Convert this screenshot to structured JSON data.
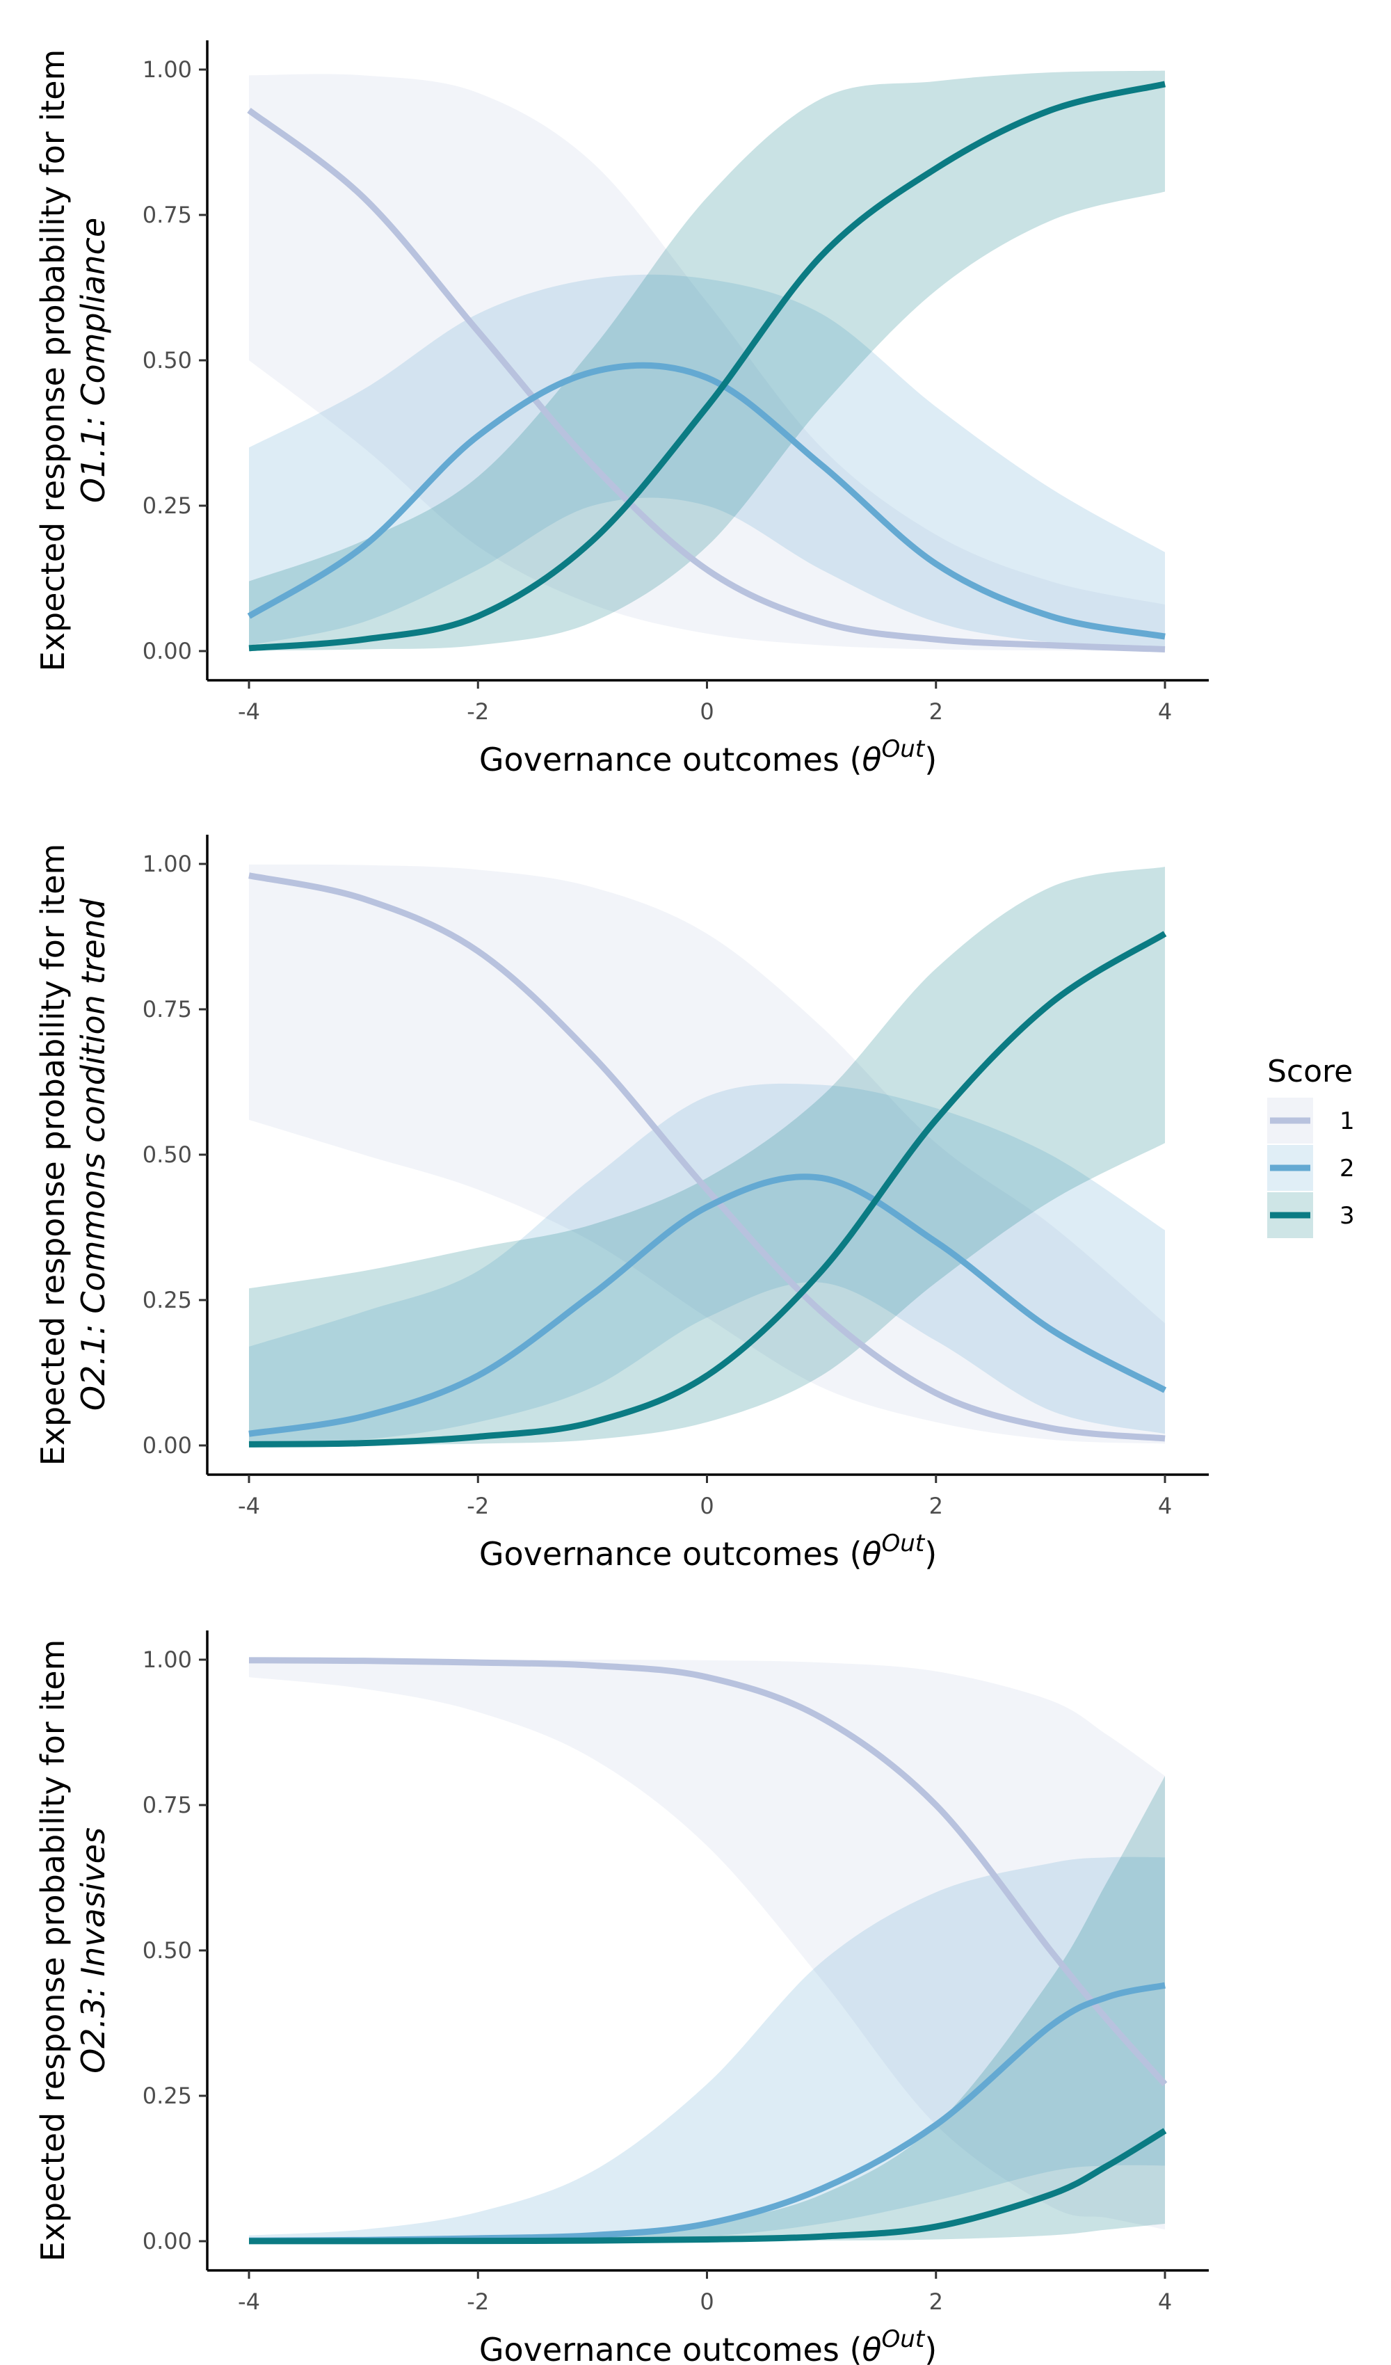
{
  "colors": {
    "score_1": "#b8c2de",
    "score_2": "#64a9d2",
    "score_3": "#0b7b83"
  },
  "legend": {
    "title": "Score",
    "items": [
      {
        "label": "1",
        "color": "#b8c2de"
      },
      {
        "label": "2",
        "color": "#64a9d2"
      },
      {
        "label": "3",
        "color": "#0b7b83"
      }
    ]
  },
  "chart_data": [
    {
      "type": "line",
      "ylabel_line1": "Expected response probability for item",
      "ylabel_item": "O1.1: Compliance",
      "xlabel_main": "Governance outcomes (",
      "xlabel_symbol": "θ",
      "xlabel_sup": "Out",
      "xlabel_close": ")",
      "xlim": [
        -4,
        4
      ],
      "ylim": [
        0,
        1
      ],
      "x_ticks": [
        -4,
        -2,
        0,
        2,
        4
      ],
      "x_tick_labels": [
        "-4",
        "-2",
        "0",
        "2",
        "4"
      ],
      "y_ticks": [
        0,
        0.25,
        0.5,
        0.75,
        1
      ],
      "y_tick_labels": [
        "0.00",
        "0.25",
        "0.50",
        "0.75",
        "1.00"
      ],
      "x": [
        -4,
        -3,
        -2,
        -1,
        0,
        1,
        2,
        3,
        4
      ],
      "series": [
        {
          "name": "1",
          "values": [
            0.93,
            0.78,
            0.55,
            0.32,
            0.14,
            0.05,
            0.02,
            0.01,
            0.003
          ],
          "lower": [
            0.5,
            0.35,
            0.18,
            0.08,
            0.03,
            0.01,
            0.003,
            0.001,
            0.0005
          ],
          "upper": [
            0.99,
            0.99,
            0.96,
            0.84,
            0.6,
            0.35,
            0.2,
            0.12,
            0.08
          ]
        },
        {
          "name": "2",
          "values": [
            0.06,
            0.18,
            0.37,
            0.48,
            0.47,
            0.32,
            0.15,
            0.06,
            0.025
          ],
          "lower": [
            0.01,
            0.05,
            0.14,
            0.25,
            0.25,
            0.14,
            0.05,
            0.015,
            0.005
          ],
          "upper": [
            0.35,
            0.45,
            0.58,
            0.64,
            0.64,
            0.58,
            0.42,
            0.28,
            0.17
          ]
        },
        {
          "name": "3",
          "values": [
            0.005,
            0.02,
            0.06,
            0.19,
            0.42,
            0.68,
            0.83,
            0.93,
            0.975
          ],
          "lower": [
            0.0005,
            0.003,
            0.01,
            0.05,
            0.18,
            0.42,
            0.62,
            0.74,
            0.79
          ],
          "upper": [
            0.12,
            0.19,
            0.3,
            0.52,
            0.78,
            0.95,
            0.98,
            0.995,
            0.998
          ]
        }
      ]
    },
    {
      "type": "line",
      "ylabel_line1": "Expected response probability for item",
      "ylabel_item": "O2.1: Commons condition trend",
      "xlabel_main": "Governance outcomes (",
      "xlabel_symbol": "θ",
      "xlabel_sup": "Out",
      "xlabel_close": ")",
      "xlim": [
        -4,
        4
      ],
      "ylim": [
        0,
        1
      ],
      "x_ticks": [
        -4,
        -2,
        0,
        2,
        4
      ],
      "x_tick_labels": [
        "-4",
        "-2",
        "0",
        "2",
        "4"
      ],
      "y_ticks": [
        0,
        0.25,
        0.5,
        0.75,
        1
      ],
      "y_tick_labels": [
        "0.00",
        "0.25",
        "0.50",
        "0.75",
        "1.00"
      ],
      "x": [
        -4,
        -3,
        -2,
        -1,
        0,
        1,
        2,
        3,
        4
      ],
      "series": [
        {
          "name": "1",
          "values": [
            0.98,
            0.94,
            0.85,
            0.67,
            0.44,
            0.23,
            0.09,
            0.03,
            0.012
          ],
          "lower": [
            0.56,
            0.5,
            0.44,
            0.35,
            0.22,
            0.1,
            0.04,
            0.01,
            0.003
          ],
          "upper": [
            0.999,
            0.998,
            0.99,
            0.96,
            0.88,
            0.72,
            0.52,
            0.38,
            0.21
          ]
        },
        {
          "name": "2",
          "values": [
            0.02,
            0.05,
            0.12,
            0.26,
            0.41,
            0.46,
            0.35,
            0.2,
            0.095
          ],
          "lower": [
            0.003,
            0.01,
            0.04,
            0.1,
            0.22,
            0.28,
            0.18,
            0.06,
            0.02
          ],
          "upper": [
            0.17,
            0.23,
            0.3,
            0.46,
            0.6,
            0.62,
            0.58,
            0.5,
            0.37
          ]
        },
        {
          "name": "3",
          "values": [
            0.002,
            0.004,
            0.015,
            0.04,
            0.12,
            0.3,
            0.56,
            0.76,
            0.88
          ],
          "lower": [
            0.0003,
            0.001,
            0.003,
            0.01,
            0.04,
            0.12,
            0.28,
            0.42,
            0.52
          ],
          "upper": [
            0.27,
            0.3,
            0.34,
            0.38,
            0.46,
            0.6,
            0.82,
            0.96,
            0.995
          ]
        }
      ]
    },
    {
      "type": "line",
      "ylabel_line1": "Expected response probability for item",
      "ylabel_item": "O2.3: Invasives",
      "xlabel_main": "Governance outcomes (",
      "xlabel_symbol": "θ",
      "xlabel_sup": "Out",
      "xlabel_close": ")",
      "xlim": [
        -4,
        4
      ],
      "ylim": [
        0,
        1
      ],
      "x_ticks": [
        -4,
        -2,
        0,
        2,
        4
      ],
      "x_tick_labels": [
        "-4",
        "-2",
        "0",
        "2",
        "4"
      ],
      "y_ticks": [
        0,
        0.25,
        0.5,
        0.75,
        1
      ],
      "y_tick_labels": [
        "0.00",
        "0.25",
        "0.50",
        "0.75",
        "1.00"
      ],
      "x": [
        -4,
        -3,
        -2,
        -1,
        0,
        1,
        2,
        3,
        3.5,
        4
      ],
      "series": [
        {
          "name": "1",
          "values": [
            0.999,
            0.998,
            0.995,
            0.99,
            0.97,
            0.9,
            0.75,
            0.5,
            0.38,
            0.27
          ],
          "lower": [
            0.97,
            0.95,
            0.91,
            0.83,
            0.68,
            0.45,
            0.2,
            0.06,
            0.04,
            0.02
          ],
          "upper": [
            1.0,
            1.0,
            1.0,
            1.0,
            0.999,
            0.995,
            0.98,
            0.93,
            0.87,
            0.8
          ]
        },
        {
          "name": "2",
          "values": [
            0.001,
            0.002,
            0.005,
            0.01,
            0.03,
            0.09,
            0.2,
            0.37,
            0.42,
            0.44
          ],
          "lower": [
            0.0002,
            0.0004,
            0.001,
            0.003,
            0.008,
            0.03,
            0.07,
            0.12,
            0.13,
            0.13
          ],
          "upper": [
            0.01,
            0.02,
            0.05,
            0.12,
            0.27,
            0.48,
            0.6,
            0.65,
            0.66,
            0.66
          ]
        },
        {
          "name": "3",
          "values": [
            0.0001,
            0.0002,
            0.0005,
            0.001,
            0.003,
            0.008,
            0.025,
            0.08,
            0.13,
            0.19
          ],
          "lower": [
            0.0,
            0.0,
            0.0,
            0.0001,
            0.0003,
            0.001,
            0.003,
            0.01,
            0.02,
            0.03
          ],
          "upper": [
            0.002,
            0.003,
            0.006,
            0.01,
            0.03,
            0.08,
            0.2,
            0.45,
            0.62,
            0.8
          ]
        }
      ]
    }
  ]
}
